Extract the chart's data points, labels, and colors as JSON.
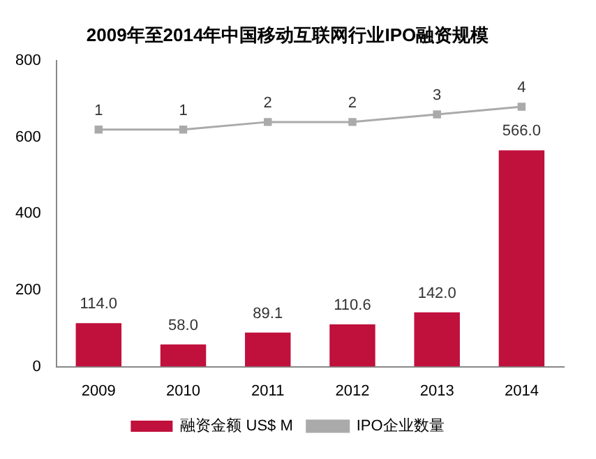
{
  "chart_data": {
    "type": "bar",
    "title": "2009年至2014年中国移动互联网行业IPO融资规模",
    "categories": [
      "2009",
      "2010",
      "2011",
      "2012",
      "2013",
      "2014"
    ],
    "series": [
      {
        "name": "融资金额 US$ M",
        "color": "#c0103c",
        "values": [
          114.0,
          58.0,
          89.1,
          110.6,
          142.0,
          566.0
        ],
        "value_labels": [
          "114.0",
          "58.0",
          "89.1",
          "110.6",
          "142.0",
          "566.0"
        ]
      },
      {
        "name": "IPO企业数量",
        "type": "line",
        "axis": "y2",
        "color": "#aaaaaa",
        "marker": "square",
        "values": [
          1,
          1,
          2,
          2,
          3,
          4
        ],
        "value_labels": [
          "1",
          "1",
          "2",
          "2",
          "3",
          "4"
        ]
      }
    ],
    "ylim": [
      0,
      800
    ],
    "yticks": [
      0,
      200,
      400,
      600,
      800
    ],
    "y2lim": [
      -30,
      10
    ],
    "grid": false,
    "legend": "bottom"
  }
}
